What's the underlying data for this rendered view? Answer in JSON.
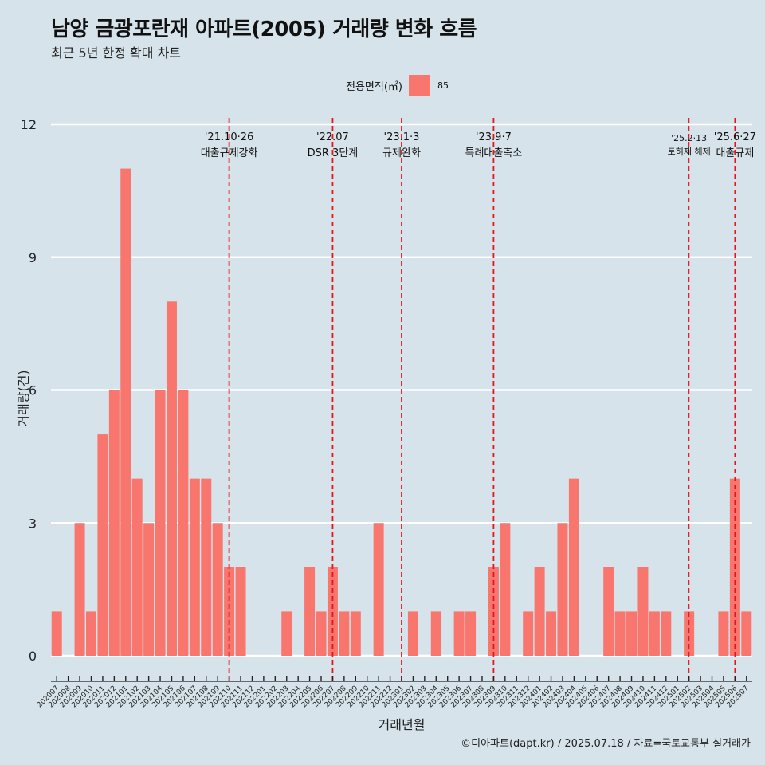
{
  "title": "남양 금광포란재 아파트(2005) 거래량 변화 흐름",
  "subtitle": "최근 5년 한정 확대 차트",
  "legend": {
    "title": "전용면적(㎡)",
    "label": "85",
    "color": "#f8766d"
  },
  "caption": "©디아파트(dapt.kr) / 2025.07.18 / 자료=국토교통부 실거래가",
  "chart_data": {
    "type": "bar",
    "xlabel": "거래년월",
    "ylabel": "거래량(건)",
    "ylim": [
      0,
      12
    ],
    "yticks": [
      0,
      3,
      6,
      9,
      12
    ],
    "grid": "horizontal",
    "legend_position": "top",
    "categories": [
      "202007",
      "202008",
      "202009",
      "202010",
      "202011",
      "202012",
      "202101",
      "202102",
      "202103",
      "202104",
      "202105",
      "202106",
      "202107",
      "202108",
      "202109",
      "202110",
      "202111",
      "202112",
      "202201",
      "202202",
      "202203",
      "202204",
      "202205",
      "202206",
      "202207",
      "202208",
      "202209",
      "202210",
      "202211",
      "202212",
      "202301",
      "202302",
      "202303",
      "202304",
      "202305",
      "202306",
      "202307",
      "202308",
      "202309",
      "202310",
      "202311",
      "202312",
      "202401",
      "202402",
      "202403",
      "202404",
      "202405",
      "202406",
      "202407",
      "202408",
      "202409",
      "202410",
      "202411",
      "202412",
      "202501",
      "202502",
      "202503",
      "202504",
      "202505",
      "202506",
      "202507"
    ],
    "series": [
      {
        "name": "85",
        "color": "#f8766d",
        "values": [
          1,
          0,
          3,
          1,
          5,
          6,
          11,
          4,
          3,
          6,
          8,
          6,
          4,
          4,
          3,
          2,
          2,
          0,
          0,
          0,
          1,
          0,
          2,
          1,
          2,
          1,
          1,
          0,
          3,
          0,
          0,
          1,
          0,
          1,
          0,
          1,
          1,
          0,
          2,
          3,
          0,
          1,
          2,
          1,
          3,
          4,
          0,
          0,
          2,
          1,
          1,
          2,
          1,
          1,
          0,
          1,
          0,
          0,
          1,
          4,
          1
        ]
      }
    ],
    "annotations": [
      {
        "x": "202110",
        "line1": "'21.10·26",
        "line2": "대출규제강화"
      },
      {
        "x": "202207",
        "line1": "'22.07",
        "line2": "DSR 3단계"
      },
      {
        "x": "202301",
        "line1": "'23.1·3",
        "line2": "규제완화"
      },
      {
        "x": "202309",
        "line1": "'23.9·7",
        "line2": "특례대출축소"
      },
      {
        "x": "202502",
        "line1": "'25.2·13",
        "line2": "토허제 해제"
      },
      {
        "x": "202506",
        "line1": "'25.6·27",
        "line2": "대출규제"
      }
    ],
    "annotation_color": "#e8141c"
  }
}
